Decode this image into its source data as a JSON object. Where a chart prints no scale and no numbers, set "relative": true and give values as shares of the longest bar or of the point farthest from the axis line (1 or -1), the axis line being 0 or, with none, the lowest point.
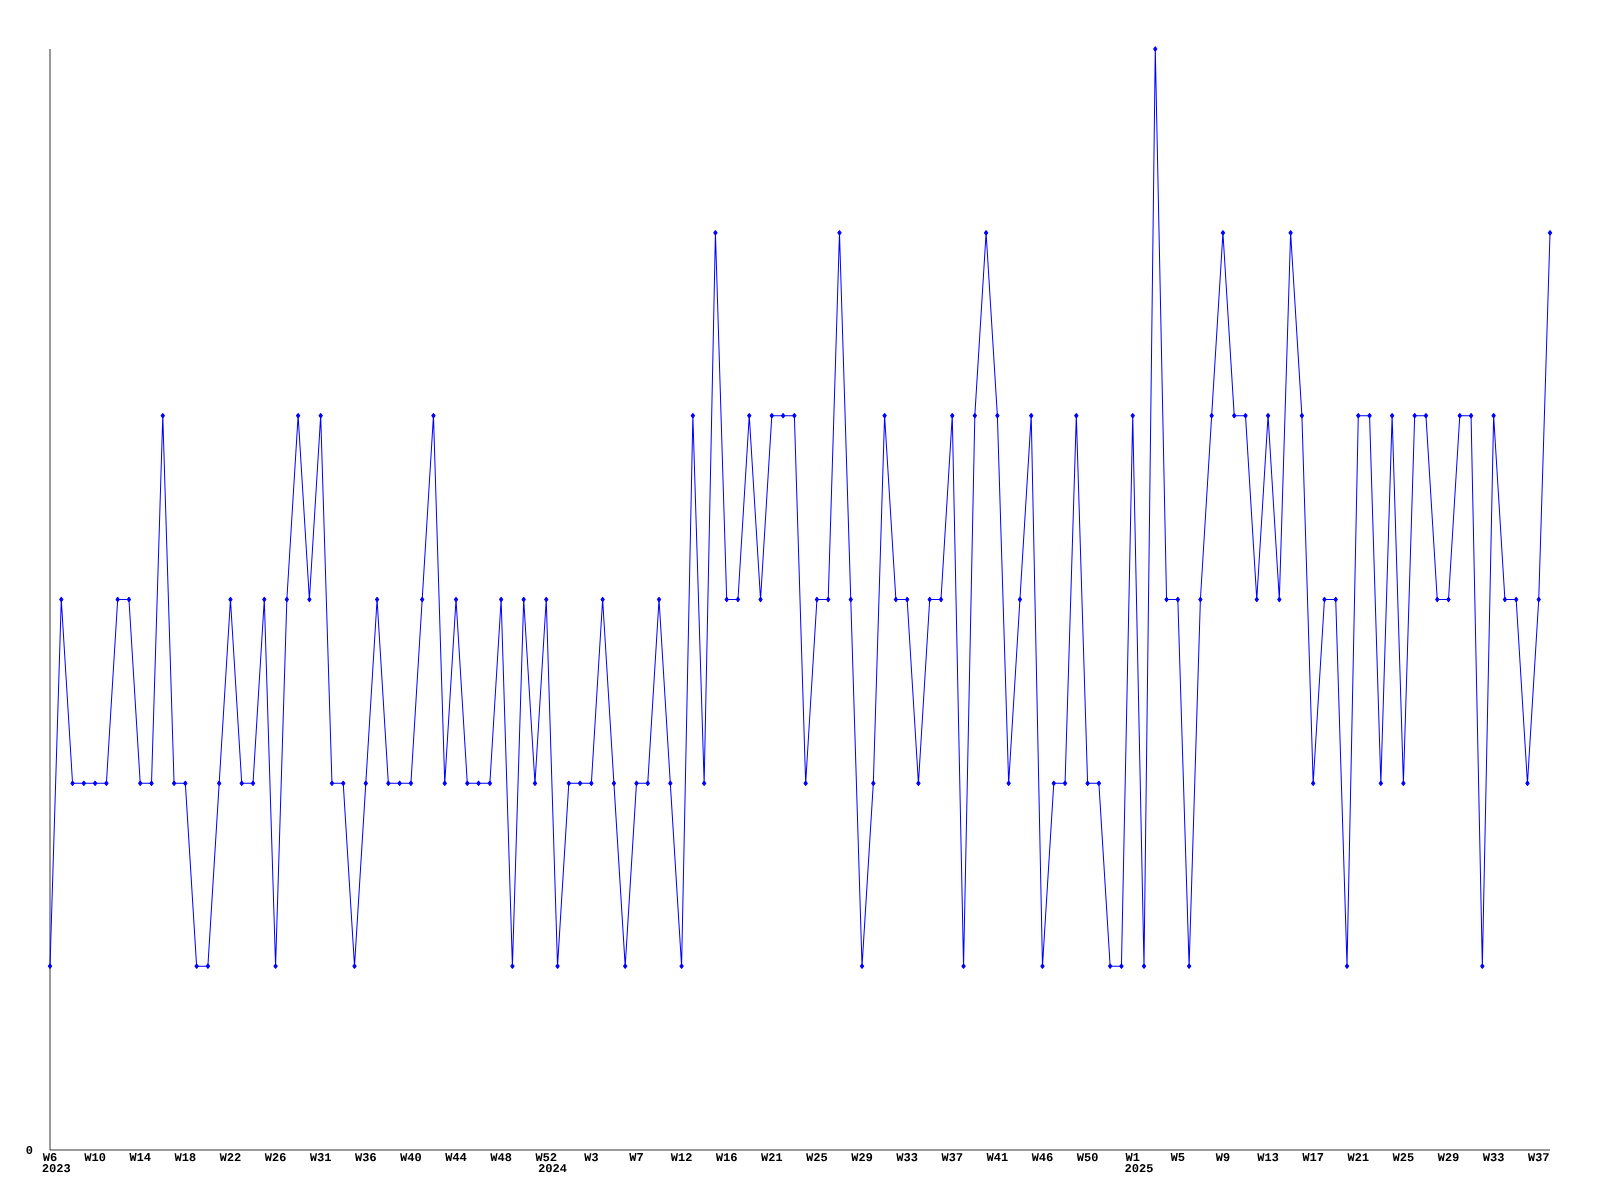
{
  "chart_data": {
    "type": "line",
    "relative": true,
    "color": "#0000ff",
    "marker": "diamond",
    "annotations": [
      "0"
    ],
    "categories": [
      "W6",
      "2023",
      null,
      null,
      "W10",
      null,
      null,
      null,
      "W14",
      null,
      null,
      null,
      "W18",
      null,
      null,
      null,
      "W22",
      null,
      null,
      null,
      "W26",
      null,
      null,
      null,
      "W31",
      null,
      null,
      null,
      "W36",
      null,
      null,
      null,
      "W40",
      null,
      null,
      null,
      "W44",
      null,
      null,
      null,
      "W48",
      null,
      null,
      null,
      "W52",
      "2024",
      null,
      null,
      "W3",
      null,
      null,
      null,
      "W7",
      null,
      null,
      null,
      "W12",
      null,
      null,
      null,
      "W16",
      null,
      null,
      null,
      "W21",
      null,
      null,
      null,
      "W25",
      null,
      null,
      null,
      "W29",
      null,
      null,
      null,
      "W33",
      null,
      null,
      null,
      "W37",
      null,
      null,
      null,
      "W41",
      null,
      null,
      null,
      "W46",
      null,
      null,
      null,
      "W50",
      null,
      null,
      null,
      "W1",
      "2025",
      null,
      null,
      "W5",
      null,
      null,
      null,
      "W9",
      null,
      null,
      null,
      "W13",
      null,
      null,
      null,
      "W17",
      null,
      null,
      null,
      "W21",
      null,
      null,
      null,
      "W25",
      null,
      null,
      null,
      "W29",
      null,
      null,
      null,
      "W33",
      null,
      null,
      null,
      "W37",
      null
    ],
    "values": [
      0.167,
      0.5,
      0.333,
      0.333,
      0.333,
      0.333,
      0.5,
      0.5,
      0.333,
      0.333,
      0.667,
      0.333,
      0.333,
      0.167,
      0.167,
      0.333,
      0.5,
      0.333,
      0.333,
      0.5,
      0.167,
      0.5,
      0.667,
      0.5,
      0.667,
      0.333,
      0.333,
      0.167,
      0.333,
      0.5,
      0.333,
      0.333,
      0.333,
      0.5,
      0.667,
      0.333,
      0.5,
      0.333,
      0.333,
      0.333,
      0.5,
      0.167,
      0.5,
      0.333,
      0.5,
      0.167,
      0.333,
      0.333,
      0.333,
      0.5,
      0.333,
      0.167,
      0.333,
      0.333,
      0.5,
      0.333,
      0.167,
      0.667,
      0.333,
      0.833,
      0.5,
      0.5,
      0.667,
      0.5,
      0.667,
      0.667,
      0.667,
      0.333,
      0.5,
      0.5,
      0.833,
      0.5,
      0.167,
      0.333,
      0.667,
      0.5,
      0.5,
      0.333,
      0.5,
      0.5,
      0.667,
      0.167,
      0.667,
      0.833,
      0.667,
      0.333,
      0.5,
      0.667,
      0.167,
      0.333,
      0.333,
      0.667,
      0.333,
      0.333,
      0.167,
      0.167,
      0.667,
      0.167,
      1,
      0.5,
      0.5,
      0.167,
      0.5,
      0.667,
      0.833,
      0.667,
      0.667,
      0.5,
      0.667,
      0.5,
      0.833,
      0.667,
      0.333,
      0.5,
      0.5,
      0.167,
      0.667,
      0.667,
      0.333,
      0.667,
      0.333,
      0.667,
      0.667,
      0.5,
      0.5,
      0.667,
      0.667,
      0.167,
      0.667,
      0.5,
      0.5,
      0.333,
      0.5,
      0.833
    ]
  }
}
